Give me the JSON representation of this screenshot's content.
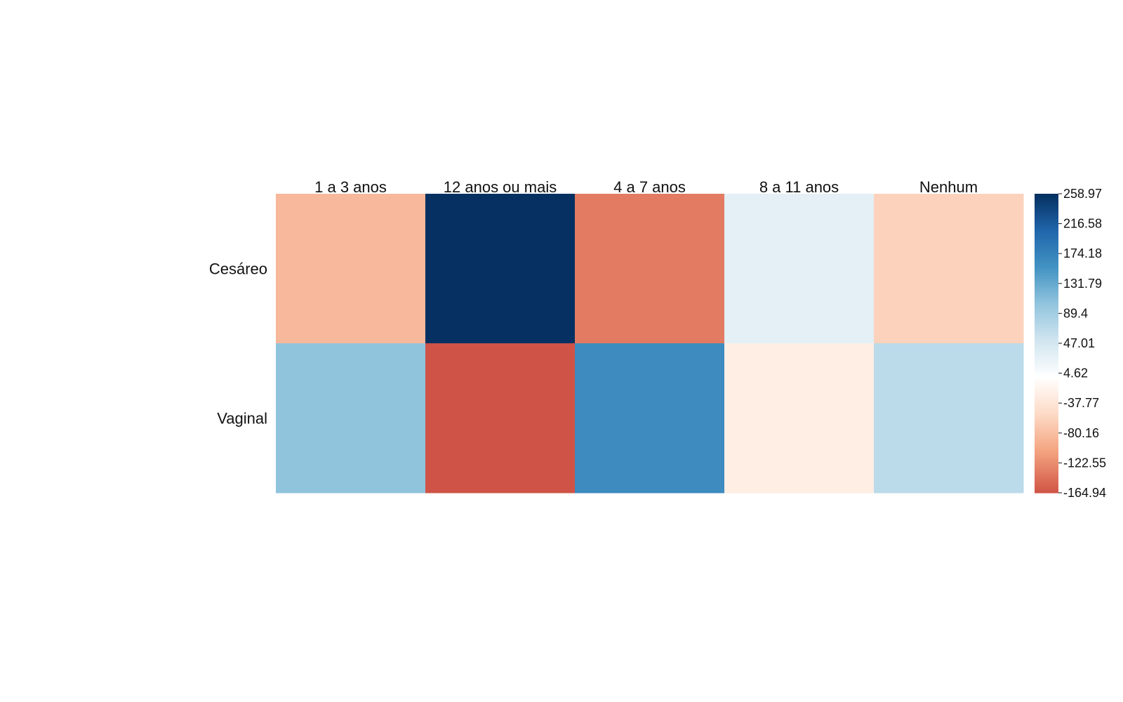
{
  "chart_data": {
    "type": "heatmap",
    "columns": [
      "1 a 3 anos",
      "12 anos ou mais",
      "4 a 7 anos",
      "8 a 11 anos",
      "Nenhum"
    ],
    "rows": [
      "Cesáreo",
      "Vaginal"
    ],
    "values": [
      [
        -85,
        259,
        -135,
        30,
        -60
      ],
      [
        105,
        -165,
        165,
        -25,
        70
      ]
    ],
    "colorbar": {
      "min": -164.94,
      "max": 258.97,
      "ticks": [
        "258.97",
        "216.58",
        "174.18",
        "131.79",
        "89.4",
        "47.01",
        "4.62",
        "-37.77",
        "-80.16",
        "-122.55",
        "-164.94"
      ]
    },
    "palette": {
      "low": "#67001F",
      "mid": "#FFFFFF",
      "high": "#053061",
      "stops": [
        "#67001F",
        "#B2182B",
        "#D6604D",
        "#F4A582",
        "#FDDBC7",
        "#FFFFFF",
        "#D1E5F0",
        "#92C5DE",
        "#4393C3",
        "#2166AC",
        "#053061"
      ]
    }
  }
}
